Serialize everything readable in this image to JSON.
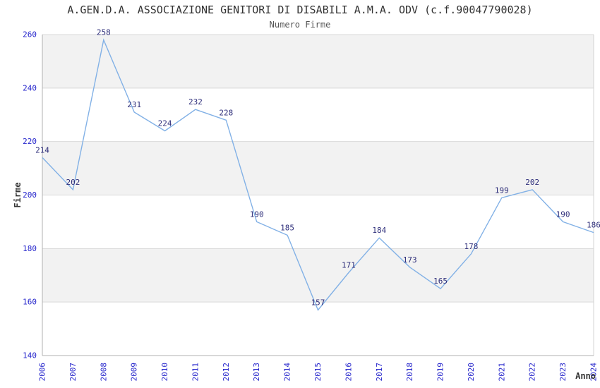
{
  "header": {
    "title": "A.GEN.D.A. ASSOCIAZIONE GENITORI DI DISABILI A.M.A. ODV (c.f.90047790028)",
    "subtitle": "Numero Firme"
  },
  "chart_data": {
    "type": "line",
    "title": "A.GEN.D.A. ASSOCIAZIONE GENITORI DI DISABILI A.M.A. ODV (c.f.90047790028)",
    "subtitle": "Numero Firme",
    "xlabel": "Anno",
    "ylabel": "Firme",
    "x": [
      2006,
      2007,
      2008,
      2009,
      2010,
      2011,
      2012,
      2013,
      2014,
      2015,
      2016,
      2017,
      2018,
      2019,
      2020,
      2021,
      2022,
      2023,
      2024
    ],
    "series": [
      {
        "name": "Numero Firme",
        "values": [
          214,
          202,
          258,
          231,
          224,
          232,
          228,
          190,
          185,
          157,
          171,
          184,
          173,
          165,
          178,
          199,
          202,
          190,
          186
        ]
      }
    ],
    "data_labels_shown": true,
    "ylim": [
      140,
      260
    ],
    "ytick_step": 20,
    "yticks": [
      140,
      160,
      180,
      200,
      220,
      240,
      260
    ],
    "grid": true,
    "banded_background": true,
    "legend_position": "none",
    "colors": {
      "line": "#82b1e6",
      "tick_label": "#2727cc",
      "data_label": "#2e2e7a",
      "band": "#f2f2f2",
      "grid": "#d9d9d9",
      "axis": "#b0b0b0",
      "border": "#d3d3d3",
      "title": "#333333",
      "subtitle": "#555555",
      "axis_name": "#333333"
    }
  }
}
